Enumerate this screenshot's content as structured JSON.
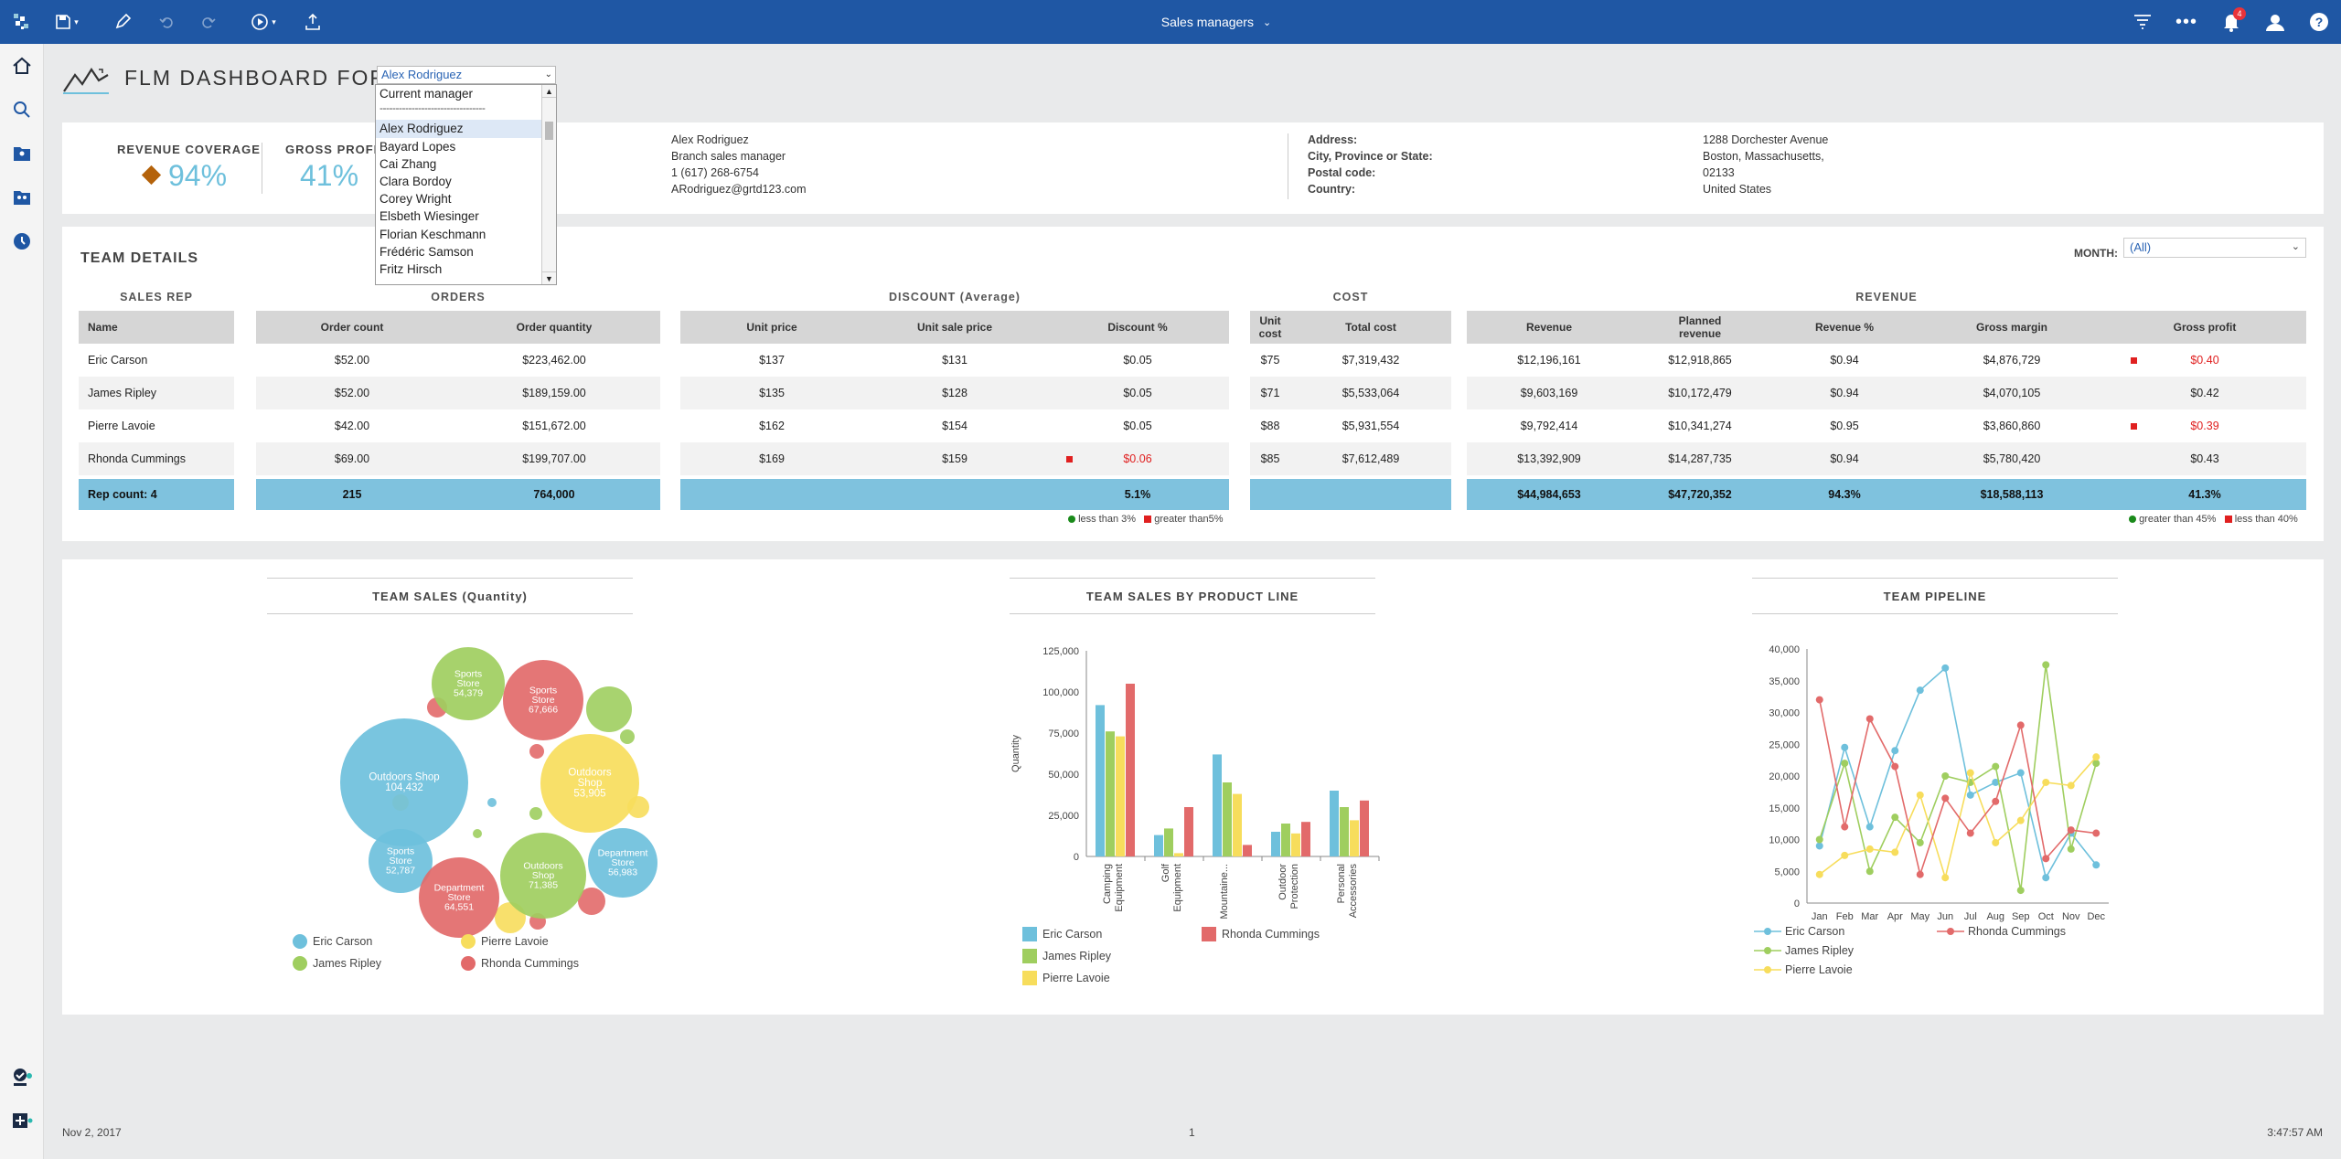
{
  "topbar": {
    "title": "Sales managers",
    "notif_count": "4"
  },
  "header": {
    "title": "FLM DASHBOARD FOR:",
    "selected_manager": "Alex Rodriguez",
    "dropdown_options": [
      "Current manager",
      "---------------------------------",
      "Alex Rodriguez",
      "Bayard Lopes",
      "Cai Zhang",
      "Clara Bordoy",
      "Corey Wright",
      "Elsbeth Wiesinger",
      "Florian Keschmann",
      "Frédéric Samson",
      "Fritz Hirsch"
    ]
  },
  "kpis": {
    "revenue_coverage_label": "REVENUE COVERAGE",
    "revenue_coverage_value": "94%",
    "gross_profit_label": "GROSS PROFIT",
    "gross_profit_value": "41%"
  },
  "manager_info": {
    "name": "Alex Rodriguez",
    "role": "Branch sales manager",
    "phone": "1 (617) 268-6754",
    "email": "ARodriguez@grtd123.com",
    "address_label": "Address:",
    "city_label": "City, Province or State:",
    "postal_label": "Postal code:",
    "country_label": "Country:",
    "address": "1288 Dorchester Avenue",
    "city": "Boston, Massachusetts,",
    "postal": "02133",
    "country": "United States"
  },
  "team": {
    "title": "TEAM DETAILS",
    "month_label": "MONTH:",
    "month_value": "(All)",
    "groups": {
      "sales_rep": "SALES REP",
      "orders": "ORDERS",
      "discount": "DISCOUNT (Average)",
      "cost": "COST",
      "revenue": "REVENUE"
    },
    "columns": {
      "name": "Name",
      "order_count": "Order count",
      "order_qty": "Order quantity",
      "unit_price": "Unit price",
      "unit_sale_price": "Unit sale price",
      "discount_pct": "Discount %",
      "unit_cost": "Unit cost",
      "total_cost": "Total cost",
      "revenue": "Revenue",
      "planned_revenue": "Planned revenue",
      "revenue_pct": "Revenue %",
      "gross_margin": "Gross margin",
      "gross_profit": "Gross profit"
    },
    "rows": [
      {
        "name": "Eric Carson",
        "order_count": "$52.00",
        "order_qty": "$223,462.00",
        "unit_price": "$137",
        "unit_sale_price": "$131",
        "discount_pct": "$0.05",
        "unit_cost": "$75",
        "total_cost": "$7,319,432",
        "revenue": "$12,196,161",
        "planned_revenue": "$12,918,865",
        "revenue_pct": "$0.94",
        "gross_margin": "$4,876,729",
        "gross_profit": "$0.40"
      },
      {
        "name": "James Ripley",
        "order_count": "$52.00",
        "order_qty": "$189,159.00",
        "unit_price": "$135",
        "unit_sale_price": "$128",
        "discount_pct": "$0.05",
        "unit_cost": "$71",
        "total_cost": "$5,533,064",
        "revenue": "$9,603,169",
        "planned_revenue": "$10,172,479",
        "revenue_pct": "$0.94",
        "gross_margin": "$4,070,105",
        "gross_profit": "$0.42"
      },
      {
        "name": "Pierre Lavoie",
        "order_count": "$42.00",
        "order_qty": "$151,672.00",
        "unit_price": "$162",
        "unit_sale_price": "$154",
        "discount_pct": "$0.05",
        "unit_cost": "$88",
        "total_cost": "$5,931,554",
        "revenue": "$9,792,414",
        "planned_revenue": "$10,341,274",
        "revenue_pct": "$0.95",
        "gross_margin": "$3,860,860",
        "gross_profit": "$0.39"
      },
      {
        "name": "Rhonda Cummings",
        "order_count": "$69.00",
        "order_qty": "$199,707.00",
        "unit_price": "$169",
        "unit_sale_price": "$159",
        "discount_pct": "$0.06",
        "unit_cost": "$85",
        "total_cost": "$7,612,489",
        "revenue": "$13,392,909",
        "planned_revenue": "$14,287,735",
        "revenue_pct": "$0.94",
        "gross_margin": "$5,780,420",
        "gross_profit": "$0.43"
      }
    ],
    "totals": {
      "name": "Rep count: 4",
      "order_count": "215",
      "order_qty": "764,000",
      "discount_pct": "5.1%",
      "revenue": "$44,984,653",
      "planned_revenue": "$47,720,352",
      "revenue_pct": "94.3%",
      "gross_margin": "$18,588,113",
      "gross_profit": "41.3%"
    },
    "discount_legend": {
      "low": "less than 3%",
      "high": "greater than5%"
    },
    "profit_legend": {
      "high": "greater than 45%",
      "low": "less than 40%"
    },
    "colors": {
      "good": "#1a8a1a",
      "bad": "#e02020",
      "total_bg": "#7fc2de"
    }
  },
  "charts": {
    "bubble": {
      "title": "TEAM SALES (Quantity)",
      "labels": [
        {
          "name": "Outdoors Shop",
          "value": "104,432"
        },
        {
          "name": "Outdoors Shop",
          "value": "53,905"
        },
        {
          "name": "Sports Store",
          "value": "67,666"
        },
        {
          "name": "Sports Store",
          "value": "54,379"
        },
        {
          "name": "Sports Store",
          "value": "52,787"
        },
        {
          "name": "Department Store",
          "value": "64,551"
        },
        {
          "name": "Outdoors Shop",
          "value": "71,385"
        },
        {
          "name": "Department Store",
          "value": "56,983"
        }
      ]
    },
    "bar": {
      "title": "TEAM SALES BY PRODUCT LINE",
      "ylabel": "Quantity",
      "yticks": [
        "125,000",
        "100,000",
        "75,000",
        "50,000",
        "25,000",
        "0"
      ]
    },
    "line": {
      "title": "TEAM PIPELINE",
      "yticks": [
        "40,000",
        "35,000",
        "30,000",
        "25,000",
        "20,000",
        "15,000",
        "10,000",
        "5,000",
        "0"
      ]
    },
    "series_names": [
      "Eric Carson",
      "James Ripley",
      "Pierre Lavoie",
      "Rhonda Cummings"
    ],
    "colors": {
      "eric": "#6ec0dc",
      "james": "#9fce5f",
      "pierre": "#f7dd5c",
      "rhonda": "#e26a6a"
    }
  },
  "chart_data": [
    {
      "type": "scatter",
      "title": "TEAM SALES (Quantity)",
      "series": [
        {
          "name": "Eric Carson",
          "values": [
            104432,
            52787,
            56983
          ]
        },
        {
          "name": "James Ripley",
          "values": [
            54379,
            71385
          ]
        },
        {
          "name": "Pierre Lavoie",
          "values": [
            53905
          ]
        },
        {
          "name": "Rhonda Cummings",
          "values": [
            67666,
            64551
          ]
        }
      ]
    },
    {
      "type": "bar",
      "title": "TEAM SALES BY PRODUCT LINE",
      "ylabel": "Quantity",
      "ylim": [
        0,
        125000
      ],
      "categories": [
        "Camping Equipment",
        "Golf Equipment",
        "Mountaine...",
        "Outdoor Protection",
        "Personal Accessories"
      ],
      "series": [
        {
          "name": "Eric Carson",
          "values": [
            92000,
            13000,
            62000,
            15000,
            40000
          ]
        },
        {
          "name": "James Ripley",
          "values": [
            76000,
            17000,
            45000,
            20000,
            30000
          ]
        },
        {
          "name": "Pierre Lavoie",
          "values": [
            73000,
            2000,
            38000,
            14000,
            22000
          ]
        },
        {
          "name": "Rhonda Cummings",
          "values": [
            105000,
            30000,
            7000,
            21000,
            34000
          ]
        }
      ]
    },
    {
      "type": "line",
      "title": "TEAM PIPELINE",
      "ylim": [
        0,
        40000
      ],
      "x": [
        "Jan",
        "Feb",
        "Mar",
        "Apr",
        "May",
        "Jun",
        "Jul",
        "Aug",
        "Sep",
        "Oct",
        "Nov",
        "Dec"
      ],
      "series": [
        {
          "name": "Eric Carson",
          "values": [
            9000,
            24500,
            12000,
            24000,
            33500,
            37000,
            17000,
            19000,
            20500,
            4000,
            11000,
            6000
          ]
        },
        {
          "name": "James Ripley",
          "values": [
            10000,
            22000,
            5000,
            13500,
            9500,
            20000,
            19000,
            21500,
            2000,
            37500,
            8500,
            22000
          ]
        },
        {
          "name": "Pierre Lavoie",
          "values": [
            4500,
            7500,
            8500,
            8000,
            17000,
            4000,
            20500,
            9500,
            13000,
            19000,
            18500,
            23000
          ]
        },
        {
          "name": "Rhonda Cummings",
          "values": [
            32000,
            12000,
            29000,
            21500,
            4500,
            16500,
            11000,
            16000,
            28000,
            7000,
            11500,
            11000
          ]
        }
      ]
    }
  ]
}
